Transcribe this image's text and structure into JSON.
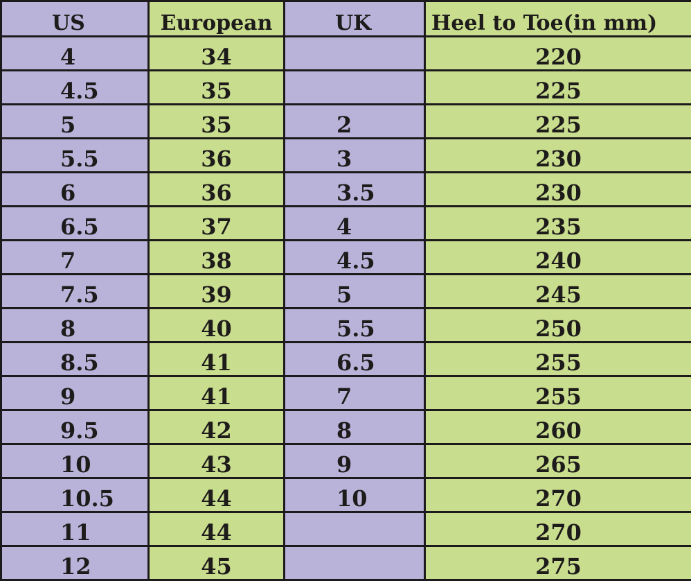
{
  "colors": {
    "us_uk_columns": "#b9b3d9",
    "european_heel_columns": "#c9dd8e",
    "border": "#1c1a1a"
  },
  "headers": [
    "US",
    "European",
    "UK",
    "Heel to Toe(in mm)"
  ],
  "rows": [
    [
      "4",
      "34",
      "",
      "220"
    ],
    [
      "4.5",
      "35",
      "",
      "225"
    ],
    [
      "5",
      "35",
      "2",
      "225"
    ],
    [
      "5.5",
      "36",
      "3",
      "230"
    ],
    [
      "6",
      "36",
      "3.5",
      "230"
    ],
    [
      "6.5",
      "37",
      "4",
      "235"
    ],
    [
      "7",
      "38",
      "4.5",
      "240"
    ],
    [
      "7.5",
      "39",
      "5",
      "245"
    ],
    [
      "8",
      "40",
      "5.5",
      "250"
    ],
    [
      "8.5",
      "41",
      "6.5",
      "255"
    ],
    [
      "9",
      "41",
      "7",
      "255"
    ],
    [
      "9.5",
      "42",
      "8",
      "260"
    ],
    [
      "10",
      "43",
      "9",
      "265"
    ],
    [
      "10.5",
      "44",
      "10",
      "270"
    ],
    [
      "11",
      "44",
      "",
      "270"
    ],
    [
      "12",
      "45",
      "",
      "275"
    ]
  ]
}
